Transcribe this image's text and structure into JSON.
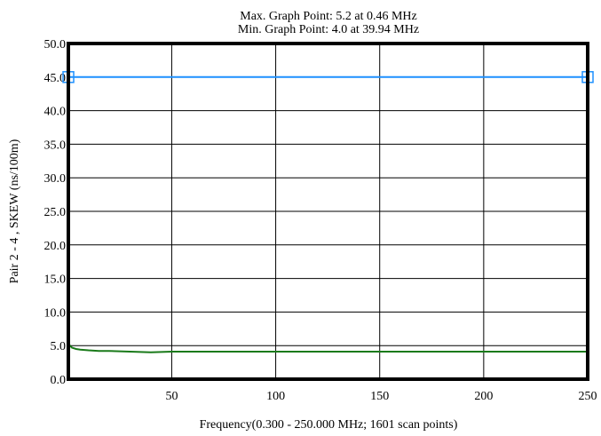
{
  "chart_data": {
    "type": "line",
    "title_lines": [
      "Max. Graph Point: 5.2 at 0.46 MHz",
      "Min. Graph Point: 4.0 at 39.94 MHz"
    ],
    "xlabel": "Frequency(0.300 - 250.000 MHz; 1601 scan points)",
    "ylabel": "Pair 2 - 4 , SKEW (ns/100m)",
    "xlim": [
      0.3,
      250
    ],
    "ylim": [
      0,
      50
    ],
    "x_ticks": [
      50,
      100,
      150,
      200,
      250
    ],
    "x_tick_labels": [
      "50",
      "100",
      "150",
      "200",
      "250"
    ],
    "y_ticks": [
      0,
      5,
      10,
      15,
      20,
      25,
      30,
      35,
      40,
      45,
      50
    ],
    "y_tick_labels": [
      "0.0",
      "5.0",
      "10.0",
      "15.0",
      "20.0",
      "25.0",
      "30.0",
      "35.0",
      "40.0",
      "45.0",
      "50.0"
    ],
    "grid": true,
    "series": [
      {
        "role": "limit",
        "color": "#1e90ff",
        "marker": "square",
        "x": [
          0.3,
          250
        ],
        "y": [
          45,
          45
        ]
      },
      {
        "role": "measured",
        "color": "#1a7a1a",
        "x": [
          0.3,
          0.46,
          2,
          4,
          6,
          10,
          15,
          20,
          30,
          39.94,
          50,
          60,
          70,
          80,
          90,
          100,
          110,
          120,
          130,
          140,
          150,
          160,
          170,
          180,
          190,
          200,
          210,
          220,
          230,
          240,
          250
        ],
        "y": [
          5.0,
          5.2,
          4.7,
          4.5,
          4.4,
          4.3,
          4.2,
          4.2,
          4.1,
          4.0,
          4.1,
          4.1,
          4.1,
          4.1,
          4.1,
          4.1,
          4.1,
          4.1,
          4.1,
          4.1,
          4.1,
          4.1,
          4.1,
          4.1,
          4.1,
          4.1,
          4.1,
          4.1,
          4.1,
          4.1,
          4.1
        ]
      }
    ]
  }
}
